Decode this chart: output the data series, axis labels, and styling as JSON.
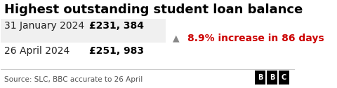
{
  "title": "Highest outstanding student loan balance",
  "row1_label": "31 January 2024",
  "row1_value": "£231, 384",
  "row2_label": "26 April 2024",
  "row2_value": "£251, 983",
  "increase_text": "8.9% increase in 86 days",
  "source_text": "Source: SLC, BBC accurate to 26 April",
  "bg_color": "#ffffff",
  "row1_bg": "#f0f0f0",
  "row2_bg": "#ffffff",
  "title_color": "#000000",
  "label_color": "#222222",
  "value_color": "#000000",
  "increase_color": "#cc0000",
  "arrow_color": "#888888",
  "source_color": "#555555",
  "bbc_bg": "#000000",
  "bbc_text": "#ffffff",
  "title_fontsize": 13,
  "label_fontsize": 10,
  "value_fontsize": 10,
  "increase_fontsize": 10,
  "source_fontsize": 7.5
}
